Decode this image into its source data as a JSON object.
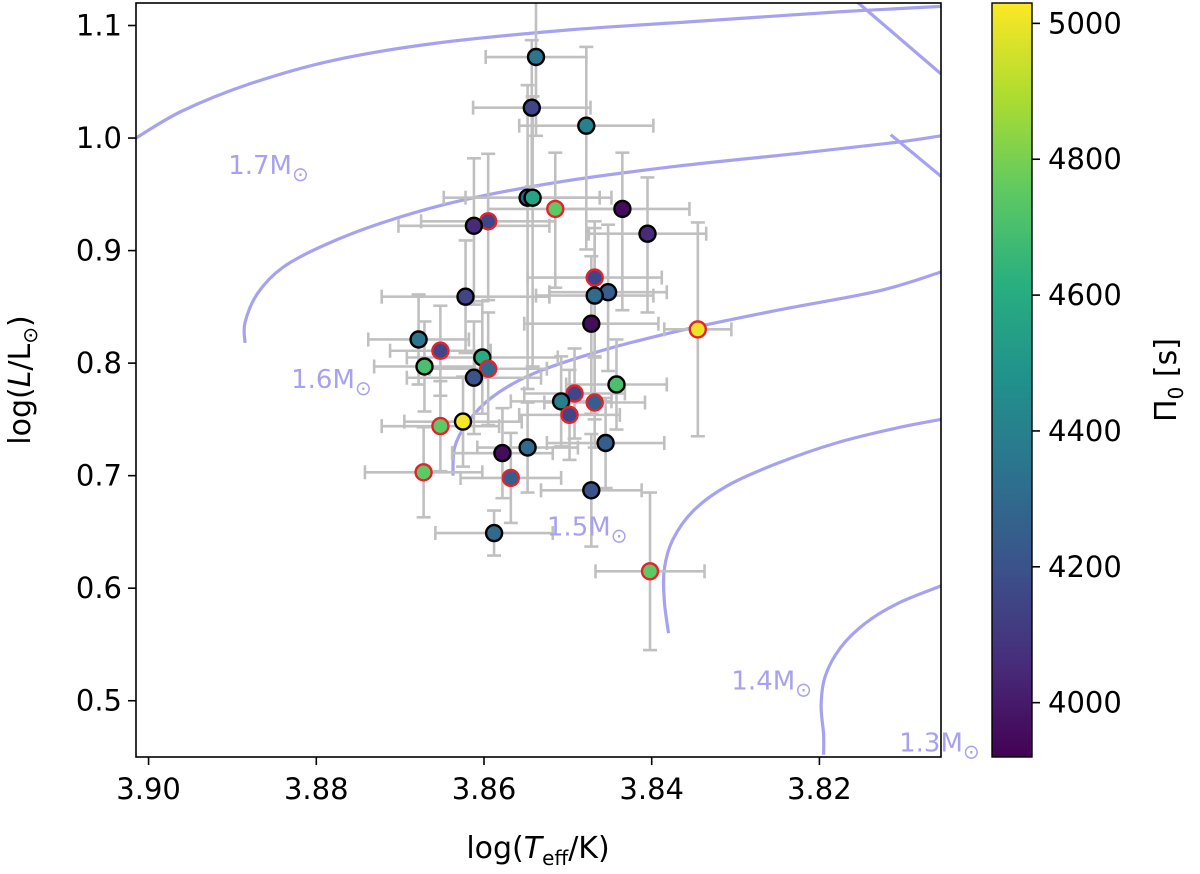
{
  "chart_data": {
    "type": "scatter",
    "xlabel": "log(T_eff/K)",
    "ylabel": "log(L/L_⊙)",
    "colorbar_label": "Π_0 [s]",
    "xlim": [
      3.9015,
      3.8055
    ],
    "ylim": [
      0.45,
      1.12
    ],
    "xticks": [
      3.9,
      3.88,
      3.86,
      3.84,
      3.82
    ],
    "xtick_labels": [
      "3.90",
      "3.88",
      "3.86",
      "3.84",
      "3.82"
    ],
    "yticks": [
      0.5,
      0.6,
      0.7,
      0.8,
      0.9,
      1.0,
      1.1
    ],
    "ytick_labels": [
      "0.5",
      "0.6",
      "0.7",
      "0.8",
      "0.9",
      "1.0",
      "1.1"
    ],
    "colorbar": {
      "colormap": "viridis",
      "range": [
        3920,
        5030
      ],
      "ticks": [
        4000,
        4200,
        4400,
        4600,
        4800,
        5000
      ],
      "tick_labels": [
        "4000",
        "4200",
        "4400",
        "4600",
        "4800",
        "5000"
      ]
    },
    "colors": {
      "track": "#a7a2ef",
      "errorbar": "#c0c0c0",
      "edge_default": "#000000",
      "edge_highlight": "#e8202a"
    },
    "tracks": [
      {
        "label": "1.7M_⊙",
        "points": [
          [
            3.9015,
            1.0
          ],
          [
            3.896,
            1.024
          ],
          [
            3.888,
            1.048
          ],
          [
            3.878,
            1.069
          ],
          [
            3.866,
            1.084
          ],
          [
            3.85,
            1.096
          ],
          [
            3.834,
            1.104
          ],
          [
            3.818,
            1.112
          ],
          [
            3.8055,
            1.117
          ]
        ]
      },
      {
        "label": "1.6M_⊙",
        "points": [
          [
            3.8885,
            0.818
          ],
          [
            3.8885,
            0.836
          ],
          [
            3.887,
            0.862
          ],
          [
            3.884,
            0.885
          ],
          [
            3.879,
            0.905
          ],
          [
            3.872,
            0.925
          ],
          [
            3.863,
            0.944
          ],
          [
            3.851,
            0.961
          ],
          [
            3.837,
            0.975
          ],
          [
            3.823,
            0.986
          ],
          [
            3.811,
            0.996
          ],
          [
            3.8055,
            1.002
          ]
        ]
      },
      {
        "label": "1.5M_⊙",
        "points": [
          [
            3.8637,
            0.7
          ],
          [
            3.8635,
            0.725
          ],
          [
            3.862,
            0.747
          ],
          [
            3.859,
            0.77
          ],
          [
            3.854,
            0.791
          ],
          [
            3.846,
            0.811
          ],
          [
            3.836,
            0.83
          ],
          [
            3.825,
            0.847
          ],
          [
            3.813,
            0.864
          ],
          [
            3.8055,
            0.881
          ]
        ]
      },
      {
        "label": "1.4M_⊙",
        "points": [
          [
            3.838,
            0.56
          ],
          [
            3.8385,
            0.589
          ],
          [
            3.8385,
            0.617
          ],
          [
            3.8375,
            0.643
          ],
          [
            3.835,
            0.669
          ],
          [
            3.831,
            0.691
          ],
          [
            3.825,
            0.711
          ],
          [
            3.818,
            0.729
          ],
          [
            3.811,
            0.742
          ],
          [
            3.8055,
            0.75
          ]
        ]
      },
      {
        "label": "1.3M_⊙",
        "points": [
          [
            3.8195,
            0.452
          ],
          [
            3.8195,
            0.47
          ],
          [
            3.8198,
            0.496
          ],
          [
            3.8193,
            0.522
          ],
          [
            3.8175,
            0.547
          ],
          [
            3.8145,
            0.569
          ],
          [
            3.8105,
            0.587
          ],
          [
            3.8055,
            0.602
          ]
        ]
      },
      {
        "label": "",
        "points": [
          [
            3.8155,
            1.121
          ],
          [
            3.8055,
            1.057
          ]
        ]
      },
      {
        "label": "",
        "points": [
          [
            3.8115,
            1.003
          ],
          [
            3.8055,
            0.966
          ]
        ]
      }
    ],
    "track_labels": [
      {
        "text": "1.7M",
        "x": 3.8905,
        "y": 0.968
      },
      {
        "text": "1.6M",
        "x": 3.883,
        "y": 0.778
      },
      {
        "text": "1.5M",
        "x": 3.8525,
        "y": 0.647
      },
      {
        "text": "1.4M",
        "x": 3.8305,
        "y": 0.51
      },
      {
        "text": "1.3M",
        "x": 3.8105,
        "y": 0.455
      }
    ],
    "points": [
      {
        "x": 3.8538,
        "y": 1.072,
        "xerr": 0.006,
        "yerr": [
          0.07,
          0.07
        ],
        "val": 4350,
        "highlight": false
      },
      {
        "x": 3.8543,
        "y": 1.027,
        "xerr": 0.007,
        "yerr": [
          0.07,
          0.06
        ],
        "val": 4150,
        "highlight": false
      },
      {
        "x": 3.8478,
        "y": 1.011,
        "xerr": 0.008,
        "yerr": [
          0.11,
          0.07
        ],
        "val": 4400,
        "highlight": false
      },
      {
        "x": 3.8548,
        "y": 0.947,
        "xerr": 0.01,
        "yerr": [
          0.17,
          0.1
        ],
        "val": 4250,
        "highlight": false
      },
      {
        "x": 3.8542,
        "y": 0.947,
        "xerr": 0.008,
        "yerr": [
          0.15,
          0.09
        ],
        "val": 4550,
        "highlight": false
      },
      {
        "x": 3.8515,
        "y": 0.937,
        "xerr": 0.008,
        "yerr": [
          0.07,
          0.05
        ],
        "val": 4750,
        "highlight": true
      },
      {
        "x": 3.8435,
        "y": 0.937,
        "xerr": 0.008,
        "yerr": [
          0.09,
          0.05
        ],
        "val": 3950,
        "highlight": false
      },
      {
        "x": 3.8595,
        "y": 0.926,
        "xerr": 0.008,
        "yerr": [
          0.07,
          0.06
        ],
        "val": 4150,
        "highlight": true
      },
      {
        "x": 3.8612,
        "y": 0.922,
        "xerr": 0.009,
        "yerr": [
          0.07,
          0.06
        ],
        "val": 4050,
        "highlight": false
      },
      {
        "x": 3.8405,
        "y": 0.915,
        "xerr": 0.007,
        "yerr": [
          0.07,
          0.05
        ],
        "val": 4050,
        "highlight": false
      },
      {
        "x": 3.8468,
        "y": 0.876,
        "xerr": 0.008,
        "yerr": [
          0.07,
          0.05
        ],
        "val": 4150,
        "highlight": true
      },
      {
        "x": 3.8452,
        "y": 0.863,
        "xerr": 0.007,
        "yerr": [
          0.07,
          0.06
        ],
        "val": 4250,
        "highlight": false
      },
      {
        "x": 3.8468,
        "y": 0.86,
        "xerr": 0.007,
        "yerr": [
          0.11,
          0.06
        ],
        "val": 4300,
        "highlight": false
      },
      {
        "x": 3.8622,
        "y": 0.859,
        "xerr": 0.01,
        "yerr": [
          0.05,
          0.05
        ],
        "val": 4150,
        "highlight": false
      },
      {
        "x": 3.8472,
        "y": 0.835,
        "xerr": 0.008,
        "yerr": [
          0.08,
          0.06
        ],
        "val": 3950,
        "highlight": false
      },
      {
        "x": 3.8345,
        "y": 0.83,
        "xerr": 0.004,
        "yerr": [
          0.095,
          0.095
        ],
        "val": 5000,
        "highlight": true
      },
      {
        "x": 3.8678,
        "y": 0.821,
        "xerr": 0.006,
        "yerr": [
          0.04,
          0.04
        ],
        "val": 4350,
        "highlight": false
      },
      {
        "x": 3.8652,
        "y": 0.811,
        "xerr": 0.006,
        "yerr": [
          0.04,
          0.04
        ],
        "val": 4150,
        "highlight": true
      },
      {
        "x": 3.8602,
        "y": 0.805,
        "xerr": 0.009,
        "yerr": [
          0.05,
          0.05
        ],
        "val": 4600,
        "highlight": false
      },
      {
        "x": 3.8671,
        "y": 0.797,
        "xerr": 0.006,
        "yerr": [
          0.04,
          0.04
        ],
        "val": 4700,
        "highlight": false
      },
      {
        "x": 3.8595,
        "y": 0.795,
        "xerr": 0.007,
        "yerr": [
          0.05,
          0.05
        ],
        "val": 4300,
        "highlight": true
      },
      {
        "x": 3.8612,
        "y": 0.787,
        "xerr": 0.008,
        "yerr": [
          0.05,
          0.05
        ],
        "val": 4200,
        "highlight": false
      },
      {
        "x": 3.8442,
        "y": 0.781,
        "xerr": 0.006,
        "yerr": [
          0.04,
          0.04
        ],
        "val": 4700,
        "highlight": false
      },
      {
        "x": 3.8492,
        "y": 0.773,
        "xerr": 0.006,
        "yerr": [
          0.04,
          0.04
        ],
        "val": 4150,
        "highlight": true
      },
      {
        "x": 3.8508,
        "y": 0.766,
        "xerr": 0.006,
        "yerr": [
          0.04,
          0.04
        ],
        "val": 4400,
        "highlight": false
      },
      {
        "x": 3.8468,
        "y": 0.765,
        "xerr": 0.006,
        "yerr": [
          0.04,
          0.04
        ],
        "val": 4250,
        "highlight": true
      },
      {
        "x": 3.8498,
        "y": 0.754,
        "xerr": 0.006,
        "yerr": [
          0.04,
          0.04
        ],
        "val": 4150,
        "highlight": true
      },
      {
        "x": 3.8625,
        "y": 0.748,
        "xerr": 0.007,
        "yerr": [
          0.04,
          0.04
        ],
        "val": 5020,
        "highlight": false
      },
      {
        "x": 3.8652,
        "y": 0.744,
        "xerr": 0.007,
        "yerr": [
          0.04,
          0.04
        ],
        "val": 4750,
        "highlight": true
      },
      {
        "x": 3.8455,
        "y": 0.729,
        "xerr": 0.007,
        "yerr": [
          0.04,
          0.04
        ],
        "val": 4250,
        "highlight": false
      },
      {
        "x": 3.8548,
        "y": 0.725,
        "xerr": 0.006,
        "yerr": [
          0.04,
          0.04
        ],
        "val": 4300,
        "highlight": false
      },
      {
        "x": 3.8578,
        "y": 0.72,
        "xerr": 0.006,
        "yerr": [
          0.04,
          0.04
        ],
        "val": 3950,
        "highlight": false
      },
      {
        "x": 3.8672,
        "y": 0.703,
        "xerr": 0.007,
        "yerr": [
          0.04,
          0.04
        ],
        "val": 4750,
        "highlight": true
      },
      {
        "x": 3.8568,
        "y": 0.698,
        "xerr": 0.006,
        "yerr": [
          0.04,
          0.04
        ],
        "val": 4250,
        "highlight": true
      },
      {
        "x": 3.8472,
        "y": 0.687,
        "xerr": 0.006,
        "yerr": [
          0.05,
          0.05
        ],
        "val": 4200,
        "highlight": false
      },
      {
        "x": 3.8588,
        "y": 0.649,
        "xerr": 0.007,
        "yerr": [
          0.02,
          0.02
        ],
        "val": 4300,
        "highlight": false
      },
      {
        "x": 3.8402,
        "y": 0.615,
        "xerr": 0.0065,
        "yerr": [
          0.07,
          0.07
        ],
        "val": 4750,
        "highlight": true
      }
    ]
  }
}
